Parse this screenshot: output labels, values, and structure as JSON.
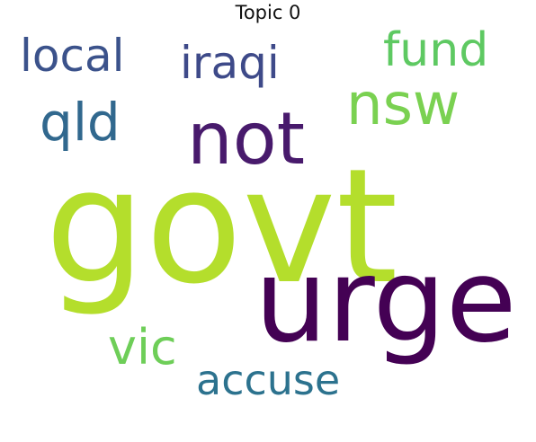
{
  "title": "Topic 0",
  "words": {
    "govt": "govt",
    "urge": "urge",
    "not": "not",
    "nsw": "nsw",
    "qld": "qld",
    "local": "local",
    "iraqi": "iraqi",
    "fund": "fund",
    "vic": "vic",
    "accuse": "accuse"
  },
  "colors": {
    "govt": "#b4de2c",
    "urge": "#440154",
    "not": "#481a6c",
    "nsw": "#7ad151",
    "qld": "#31688e",
    "local": "#3b528b",
    "iraqi": "#3e4a89",
    "fund": "#5ec962",
    "vic": "#6ece58",
    "accuse": "#2c728e"
  }
}
